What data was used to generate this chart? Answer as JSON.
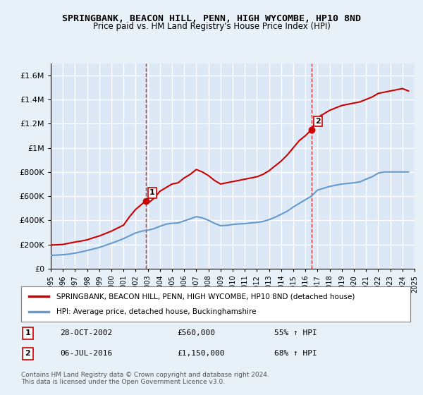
{
  "title": "SPRINGBANK, BEACON HILL, PENN, HIGH WYCOMBE, HP10 8ND",
  "subtitle": "Price paid vs. HM Land Registry's House Price Index (HPI)",
  "bg_color": "#e8f0f8",
  "plot_bg_color": "#dce8f5",
  "grid_color": "#ffffff",
  "red_line_color": "#cc0000",
  "blue_line_color": "#6699cc",
  "marker1_x": 2002.83,
  "marker1_y": 560000,
  "marker2_x": 2016.5,
  "marker2_y": 1150000,
  "legend_label_red": "SPRINGBANK, BEACON HILL, PENN, HIGH WYCOMBE, HP10 8ND (detached house)",
  "legend_label_blue": "HPI: Average price, detached house, Buckinghamshire",
  "annotation1_label": "1",
  "annotation1_date": "28-OCT-2002",
  "annotation1_price": "£560,000",
  "annotation1_hpi": "55% ↑ HPI",
  "annotation2_label": "2",
  "annotation2_date": "06-JUL-2016",
  "annotation2_price": "£1,150,000",
  "annotation2_hpi": "68% ↑ HPI",
  "footer": "Contains HM Land Registry data © Crown copyright and database right 2024.\nThis data is licensed under the Open Government Licence v3.0.",
  "ylim": [
    0,
    1700000
  ],
  "xlim": [
    1995,
    2025
  ],
  "yticks": [
    0,
    200000,
    400000,
    600000,
    800000,
    1000000,
    1200000,
    1400000,
    1600000
  ],
  "ytick_labels": [
    "£0",
    "£200K",
    "£400K",
    "£600K",
    "£800K",
    "£1M",
    "£1.2M",
    "£1.4M",
    "£1.6M"
  ],
  "xticks": [
    1995,
    1996,
    1997,
    1998,
    1999,
    2000,
    2001,
    2002,
    2003,
    2004,
    2005,
    2006,
    2007,
    2008,
    2009,
    2010,
    2011,
    2012,
    2013,
    2014,
    2015,
    2016,
    2017,
    2018,
    2019,
    2020,
    2021,
    2022,
    2023,
    2024,
    2025
  ],
  "red_x": [
    1995.0,
    1995.5,
    1996.0,
    1996.5,
    1997.0,
    1997.5,
    1998.0,
    1998.5,
    1999.0,
    1999.5,
    2000.0,
    2000.5,
    2001.0,
    2001.5,
    2002.0,
    2002.83,
    2003.0,
    2003.5,
    2004.0,
    2004.5,
    2005.0,
    2005.5,
    2006.0,
    2006.5,
    2007.0,
    2007.5,
    2008.0,
    2008.5,
    2009.0,
    2009.5,
    2010.0,
    2010.5,
    2011.0,
    2011.5,
    2012.0,
    2012.5,
    2013.0,
    2013.5,
    2014.0,
    2014.5,
    2015.0,
    2015.5,
    2016.0,
    2016.5,
    2017.0,
    2017.5,
    2018.0,
    2018.5,
    2019.0,
    2019.5,
    2020.0,
    2020.5,
    2021.0,
    2021.5,
    2022.0,
    2022.5,
    2023.0,
    2023.5,
    2024.0,
    2024.5
  ],
  "red_y": [
    195000,
    197000,
    200000,
    210000,
    220000,
    228000,
    238000,
    255000,
    270000,
    290000,
    310000,
    335000,
    360000,
    430000,
    490000,
    560000,
    540000,
    580000,
    640000,
    670000,
    700000,
    710000,
    750000,
    780000,
    820000,
    800000,
    770000,
    730000,
    700000,
    710000,
    720000,
    730000,
    740000,
    750000,
    760000,
    780000,
    810000,
    850000,
    890000,
    940000,
    1000000,
    1060000,
    1100000,
    1150000,
    1250000,
    1280000,
    1310000,
    1330000,
    1350000,
    1360000,
    1370000,
    1380000,
    1400000,
    1420000,
    1450000,
    1460000,
    1470000,
    1480000,
    1490000,
    1470000
  ],
  "blue_x": [
    1995.0,
    1995.5,
    1996.0,
    1996.5,
    1997.0,
    1997.5,
    1998.0,
    1998.5,
    1999.0,
    1999.5,
    2000.0,
    2000.5,
    2001.0,
    2001.5,
    2002.0,
    2002.5,
    2003.0,
    2003.5,
    2004.0,
    2004.5,
    2005.0,
    2005.5,
    2006.0,
    2006.5,
    2007.0,
    2007.5,
    2008.0,
    2008.5,
    2009.0,
    2009.5,
    2010.0,
    2010.5,
    2011.0,
    2011.5,
    2012.0,
    2012.5,
    2013.0,
    2013.5,
    2014.0,
    2014.5,
    2015.0,
    2015.5,
    2016.0,
    2016.5,
    2017.0,
    2017.5,
    2018.0,
    2018.5,
    2019.0,
    2019.5,
    2020.0,
    2020.5,
    2021.0,
    2021.5,
    2022.0,
    2022.5,
    2023.0,
    2023.5,
    2024.0,
    2024.5
  ],
  "blue_y": [
    110000,
    112000,
    115000,
    120000,
    128000,
    138000,
    150000,
    162000,
    175000,
    192000,
    210000,
    228000,
    248000,
    272000,
    295000,
    310000,
    318000,
    330000,
    350000,
    368000,
    375000,
    378000,
    395000,
    412000,
    430000,
    420000,
    400000,
    375000,
    355000,
    358000,
    365000,
    370000,
    372000,
    378000,
    382000,
    390000,
    405000,
    425000,
    450000,
    475000,
    510000,
    540000,
    570000,
    600000,
    650000,
    665000,
    680000,
    690000,
    700000,
    705000,
    710000,
    718000,
    740000,
    760000,
    790000,
    800000,
    800000,
    800000,
    800000,
    800000
  ]
}
